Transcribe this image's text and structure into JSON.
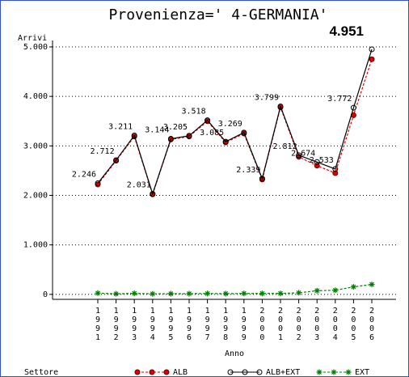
{
  "chart_data": {
    "type": "line",
    "title": "Provenienza=' 4-GERMANIA'",
    "y_label": "Arrivi",
    "x_label": "Anno",
    "legend_title": "Settore",
    "categories": [
      "1991",
      "1992",
      "1993",
      "1994",
      "1995",
      "1996",
      "1997",
      "1998",
      "1999",
      "2000",
      "2001",
      "2002",
      "2003",
      "2004",
      "2005",
      "2006"
    ],
    "series": [
      {
        "name": "ALB",
        "color": "#e00000",
        "dash": true,
        "marker": "dot",
        "values": [
          2220,
          2700,
          3190,
          2020,
          3130,
          3190,
          3500,
          3070,
          3250,
          2320,
          3780,
          2780,
          2600,
          2450,
          3620,
          4750
        ]
      },
      {
        "name": "ALB+EXT",
        "color": "#000000",
        "dash": false,
        "marker": "circle",
        "values": [
          2246,
          2712,
          3211,
          2031,
          3144,
          3205,
          3518,
          3085,
          3269,
          2339,
          3799,
          2812,
          2674,
          2533,
          3772,
          4951
        ],
        "value_labels": [
          "2.246",
          "2.712",
          "3.211",
          "2.031",
          "3.144",
          "3.205",
          "3.518",
          "3.085",
          "3.269",
          "2.339",
          "3.799",
          "2.812",
          "2.674",
          "2.533",
          "3.772",
          "4.951"
        ]
      },
      {
        "name": "EXT",
        "color": "#008000",
        "dash": true,
        "marker": "star",
        "values": [
          26,
          12,
          21,
          11,
          14,
          15,
          18,
          15,
          19,
          19,
          19,
          32,
          74,
          83,
          152,
          201
        ]
      }
    ],
    "ylim": [
      -100,
      5130
    ],
    "yticks": [
      0,
      {
        "value": 1000,
        "label": "1.000"
      },
      {
        "value": 2000,
        "label": "2.000"
      },
      {
        "value": 3000,
        "label": "3.000"
      },
      {
        "value": 4000,
        "label": "4.000"
      },
      {
        "value": 5000,
        "label": "5.000"
      }
    ],
    "grid": true
  }
}
